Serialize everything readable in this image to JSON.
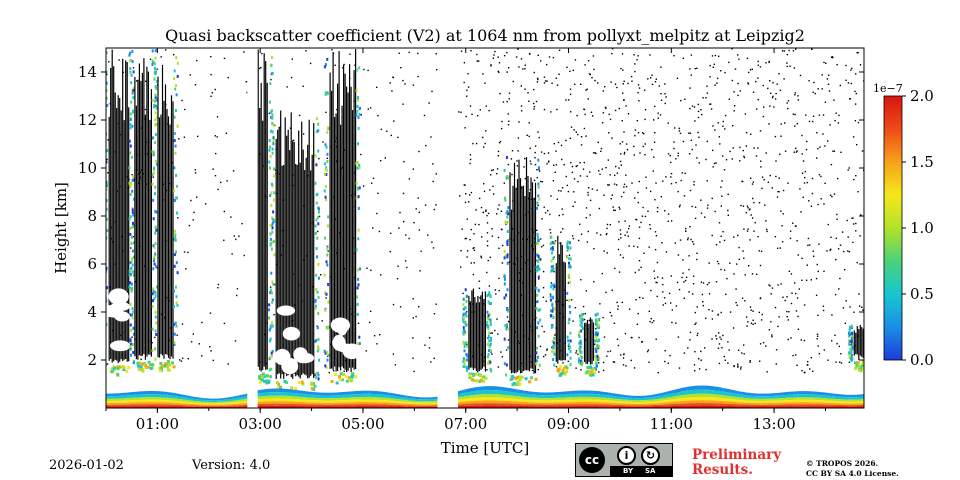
{
  "chart_data": {
    "type": "heatmap",
    "title": "Quasi backscatter coefficient (V2) at 1064 nm from pollyxt_melpitz at Leipzig2",
    "xlabel": "Time [UTC]",
    "ylabel": "Height [km]",
    "xlim_hours": [
      0.0,
      14.75
    ],
    "ylim_km": [
      0.0,
      15.0
    ],
    "x_ticks": [
      {
        "value": 1,
        "label": "01:00"
      },
      {
        "value": 3,
        "label": "03:00"
      },
      {
        "value": 5,
        "label": "05:00"
      },
      {
        "value": 7,
        "label": "07:00"
      },
      {
        "value": 9,
        "label": "09:00"
      },
      {
        "value": 11,
        "label": "11:00"
      },
      {
        "value": 13,
        "label": "13:00"
      }
    ],
    "y_ticks": [
      {
        "value": 2,
        "label": "2"
      },
      {
        "value": 4,
        "label": "4"
      },
      {
        "value": 6,
        "label": "6"
      },
      {
        "value": 8,
        "label": "8"
      },
      {
        "value": 10,
        "label": "10"
      },
      {
        "value": 12,
        "label": "12"
      },
      {
        "value": 14,
        "label": "14"
      }
    ],
    "colorbar": {
      "range": [
        0.0,
        2.0
      ],
      "exponent_label": "1e−7",
      "ticks": [
        {
          "value": 0.0,
          "label": "0.0"
        },
        {
          "value": 0.5,
          "label": "0.5"
        },
        {
          "value": 1.0,
          "label": "1.0"
        },
        {
          "value": 1.5,
          "label": "1.5"
        },
        {
          "value": 2.0,
          "label": "2.0"
        }
      ],
      "colormap": [
        "#1e3bd8",
        "#1b8fe6",
        "#19c6d0",
        "#4bd27a",
        "#b2e22a",
        "#f5e81c",
        "#f7a21a",
        "#ef4a18",
        "#d9160f"
      ]
    },
    "data_gaps_hours": [
      [
        2.75,
        2.95
      ],
      [
        6.45,
        6.85
      ]
    ],
    "regions": [
      {
        "kind": "boundary_layer",
        "t_start": 0.0,
        "t_end": 2.75,
        "top_km": 0.6,
        "peak_value": 2.0
      },
      {
        "kind": "boundary_layer",
        "t_start": 2.95,
        "t_end": 6.45,
        "top_km": 0.65,
        "peak_value": 2.0
      },
      {
        "kind": "boundary_layer",
        "t_start": 6.85,
        "t_end": 14.75,
        "top_km": 0.7,
        "peak_value": 2.0
      },
      {
        "kind": "cloud_column",
        "t_start": 0.05,
        "t_end": 0.45,
        "base_km": 1.8,
        "top_km": 15.0
      },
      {
        "kind": "cloud_column",
        "t_start": 0.55,
        "t_end": 0.9,
        "base_km": 2.0,
        "top_km": 15.0
      },
      {
        "kind": "cloud_column",
        "t_start": 1.0,
        "t_end": 1.3,
        "base_km": 2.0,
        "top_km": 15.0
      },
      {
        "kind": "cloud_column",
        "t_start": 2.95,
        "t_end": 3.15,
        "base_km": 1.5,
        "top_km": 15.0
      },
      {
        "kind": "cloud_column",
        "t_start": 3.3,
        "t_end": 4.05,
        "base_km": 1.2,
        "top_km": 12.5
      },
      {
        "kind": "cloud_column",
        "t_start": 4.35,
        "t_end": 4.85,
        "base_km": 1.5,
        "top_km": 15.0
      },
      {
        "kind": "cloud_column",
        "t_start": 7.05,
        "t_end": 7.4,
        "base_km": 1.5,
        "top_km": 5.0
      },
      {
        "kind": "cloud_column",
        "t_start": 7.85,
        "t_end": 8.35,
        "base_km": 1.4,
        "top_km": 10.5
      },
      {
        "kind": "cloud_column",
        "t_start": 8.75,
        "t_end": 8.95,
        "base_km": 1.8,
        "top_km": 7.2
      },
      {
        "kind": "cloud_column",
        "t_start": 9.3,
        "t_end": 9.5,
        "base_km": 1.8,
        "top_km": 4.0
      },
      {
        "kind": "cloud_column",
        "t_start": 14.55,
        "t_end": 14.75,
        "base_km": 2.0,
        "top_km": 3.5
      }
    ]
  },
  "footer": {
    "date": "2026-01-02",
    "version": "Version: 4.0",
    "license_badge": {
      "cc": "cc",
      "by": "BY",
      "sa": "SA"
    },
    "preliminary_line1": "Preliminary",
    "preliminary_line2": "Results.",
    "copyright_line1": "© TROPOS 2026.",
    "copyright_line2": "CC BY SA 4.0 License."
  }
}
